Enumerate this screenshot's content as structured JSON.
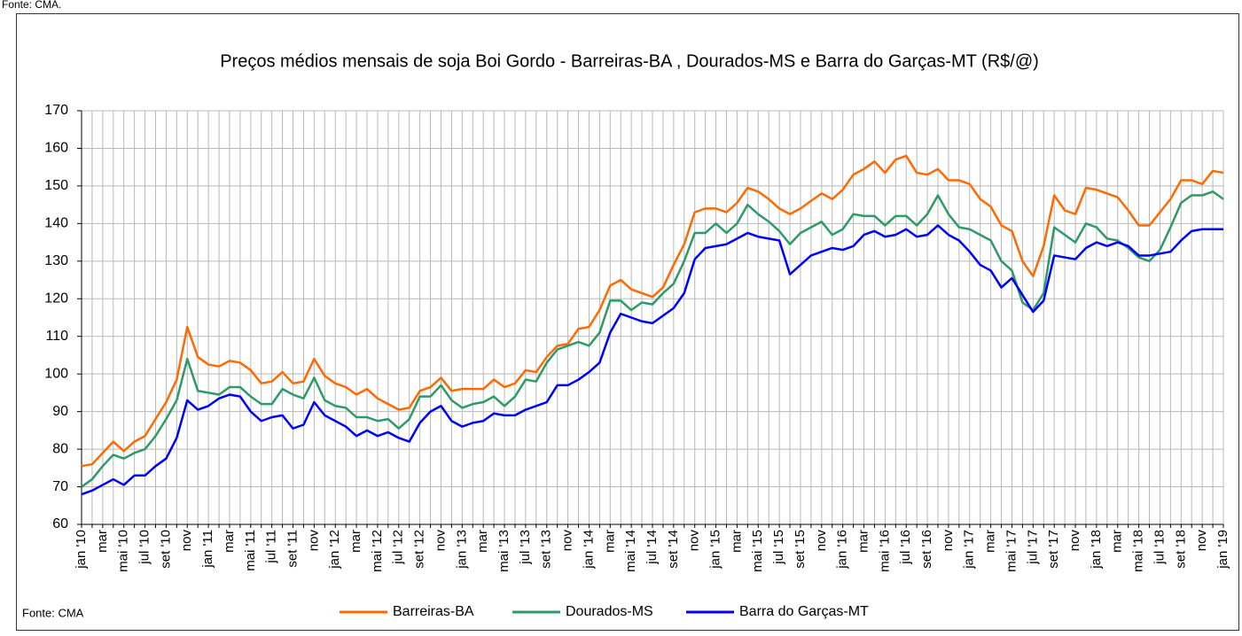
{
  "chart_data": {
    "type": "line",
    "title": "Preços médios mensais de soja Boi Gordo - Barreiras-BA , Dourados-MS e Barra do Garças-MT (R$/@)",
    "source_top": "Fonte: CMA.",
    "source": "Fonte: CMA",
    "categories": [
      "jan '10",
      null,
      "mar",
      null,
      "mai '10",
      null,
      "jul '10",
      null,
      "set '10",
      null,
      "nov",
      null,
      "jan '11",
      null,
      "mar",
      null,
      "mai '11",
      null,
      "jul '11",
      null,
      "set '11",
      null,
      "nov",
      null,
      "jan '12",
      null,
      "mar",
      null,
      "mai '12",
      null,
      "jul '12",
      null,
      "set '12",
      null,
      "nov",
      null,
      "jan '13",
      null,
      "mar",
      null,
      "mai '13",
      null,
      "jul '13",
      null,
      "set '13",
      null,
      "nov",
      null,
      "jan '14",
      null,
      "mar",
      null,
      "mai '14",
      null,
      "jul '14",
      null,
      "set '14",
      null,
      "nov",
      null,
      "jan '15",
      null,
      "mar",
      null,
      "mai '15",
      null,
      "jul '15",
      null,
      "set '15",
      null,
      "nov",
      null,
      "jan '16",
      null,
      "mar",
      null,
      "mai '16",
      null,
      "jul '16",
      null,
      "set '16",
      null,
      "nov",
      null,
      "jan '17",
      null,
      "mar",
      null,
      "mai '17",
      null,
      "jul '17",
      null,
      "set '17",
      null,
      "nov",
      null,
      "jan '18",
      null,
      "mar",
      null,
      "mai '18",
      null,
      "jul '18",
      null,
      "set '18",
      null,
      "nov",
      null,
      "jan '19"
    ],
    "series": [
      {
        "name": "Barreiras-BA",
        "color": "#ff6a00",
        "values": [
          75.5,
          76,
          79,
          82,
          79.5,
          82,
          83.5,
          88,
          92.5,
          98.5,
          112.5,
          104.5,
          102.5,
          102,
          103.5,
          103,
          101,
          97.5,
          98,
          100.5,
          97.5,
          98,
          104,
          99.5,
          97.5,
          96.5,
          94.5,
          96,
          93.5,
          92,
          90.5,
          91,
          95.5,
          96.5,
          99,
          95.5,
          96,
          96,
          96,
          98.5,
          96.5,
          97.5,
          101,
          100.5,
          104.5,
          107.5,
          108,
          112,
          112.5,
          117,
          123.5,
          125,
          122.5,
          121.5,
          120.5,
          123,
          129,
          134.5,
          143,
          144,
          144,
          143,
          145.5,
          149.5,
          148.5,
          146.5,
          144,
          142.5,
          144,
          146,
          148,
          146.5,
          149,
          153,
          154.5,
          156.5,
          153.5,
          157,
          158,
          153.5,
          153,
          154.5,
          151.5,
          151.5,
          150.5,
          146.5,
          144.5,
          139.5,
          138,
          130,
          126,
          134,
          147.5,
          143.5,
          142.5,
          149.5,
          149,
          148,
          147,
          143.5,
          139.5,
          139.5,
          143,
          146.5,
          151.5,
          151.5,
          150.5,
          154,
          153.5
        ]
      },
      {
        "name": "Dourados-MS",
        "color": "#2e9a66",
        "values": [
          70,
          72,
          75.5,
          78.5,
          77.5,
          79,
          80,
          83.5,
          88,
          93,
          104,
          95.5,
          95,
          94.5,
          96.5,
          96.5,
          94,
          92,
          92,
          96,
          94.5,
          93.5,
          99,
          93,
          91.5,
          91,
          88.5,
          88.5,
          87.5,
          88,
          85.5,
          88,
          94,
          94,
          97,
          93,
          91,
          92,
          92.5,
          94,
          91.5,
          94,
          98.5,
          98,
          103,
          106.5,
          107.5,
          108.5,
          107.5,
          111,
          119.5,
          119.5,
          117,
          119,
          118.5,
          121.5,
          124,
          130,
          137.5,
          137.5,
          140,
          137.5,
          140,
          145,
          142.5,
          140.5,
          138,
          134.5,
          137.5,
          139,
          140.5,
          137,
          138.5,
          142.5,
          142,
          142,
          139.5,
          142,
          142,
          139.5,
          142.5,
          147.5,
          142.5,
          139,
          138.5,
          137,
          135.5,
          130,
          127.5,
          119,
          117,
          121.5,
          139,
          137,
          135,
          140,
          139,
          136,
          135.5,
          133.5,
          131,
          130,
          133,
          139,
          145.5,
          147.5,
          147.5,
          148.5,
          146.5
        ]
      },
      {
        "name": "Barra do Garças-MT",
        "color": "#0000ff",
        "values": [
          68,
          69,
          70.5,
          72,
          70.5,
          73,
          73,
          75.5,
          77.5,
          83,
          93,
          90.5,
          91.5,
          93.5,
          94.5,
          94,
          90,
          87.5,
          88.5,
          89,
          85.5,
          86.5,
          92.5,
          89,
          87.5,
          86,
          83.5,
          85,
          83.5,
          84.5,
          83,
          82,
          87,
          90,
          91.5,
          87.5,
          86,
          87,
          87.5,
          89.5,
          89,
          89,
          90.5,
          91.5,
          92.5,
          97,
          97,
          98.5,
          100.5,
          103,
          111,
          116,
          115,
          114,
          113.5,
          115.5,
          117.5,
          121.5,
          130.5,
          133.5,
          134,
          134.5,
          136,
          137.5,
          136.5,
          136,
          135.5,
          126.5,
          129,
          131.5,
          132.5,
          133.5,
          133,
          134,
          137,
          138,
          136.5,
          137,
          138.5,
          136.5,
          137,
          139.5,
          137,
          135.5,
          132.5,
          129,
          127.5,
          123,
          125.5,
          121,
          116.5,
          119.5,
          131.5,
          131,
          130.5,
          133.5,
          135,
          134,
          135,
          134,
          131.5,
          131.5,
          132,
          132.5,
          135.5,
          138,
          138.5,
          138.5,
          138.5
        ]
      }
    ],
    "ylim": [
      60,
      170
    ],
    "yticks": [
      60,
      70,
      80,
      90,
      100,
      110,
      120,
      130,
      140,
      150,
      160,
      170
    ],
    "grid": true,
    "legend": "bottom"
  }
}
